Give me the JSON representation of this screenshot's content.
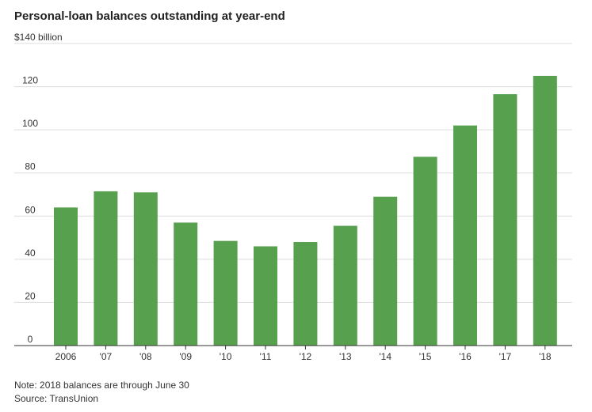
{
  "chart_data": {
    "type": "bar",
    "title": "Personal-loan balances outstanding at year-end",
    "unit_label": "$140 billion",
    "categories": [
      "2006",
      "'07",
      "'08",
      "'09",
      "'10",
      "'11",
      "'12",
      "'13",
      "'14",
      "'15",
      "'16",
      "'17",
      "'18"
    ],
    "values": [
      64,
      71.5,
      71,
      57,
      48.5,
      46,
      48,
      55.5,
      69,
      87.5,
      102,
      116.5,
      125
    ],
    "ylim": [
      0,
      140
    ],
    "yticks": [
      0,
      20,
      40,
      60,
      80,
      100,
      120
    ],
    "grid": true,
    "xlabel": "",
    "ylabel": "",
    "bar_color": "#56a04e",
    "note": "Note: 2018 balances are through June 30",
    "source": "Source: TransUnion"
  }
}
